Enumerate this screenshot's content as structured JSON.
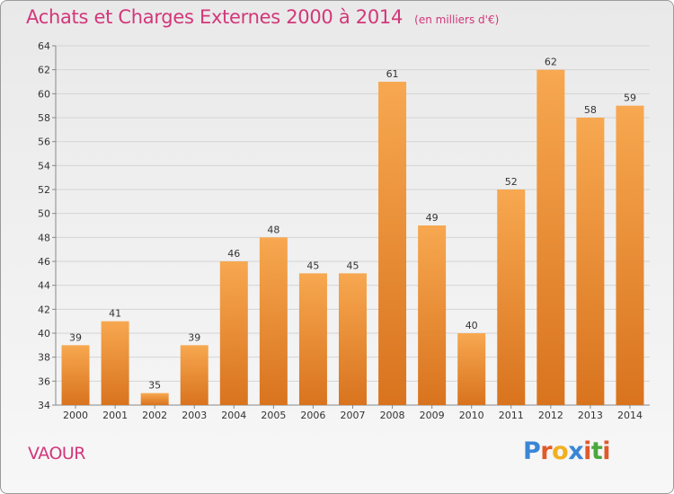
{
  "header": {
    "title": "Achats et Charges Externes 2000 à 2014",
    "subtitle": "(en milliers d'€)"
  },
  "footer": {
    "commune": "VAOUR",
    "logo_text": "Proxiti"
  },
  "colors": {
    "bar_light": "#f7a850",
    "bar_dark": "#d9731e",
    "title": "#d2377a",
    "logo_letters": [
      "#3a86d6",
      "#e05a2a",
      "#f0b020",
      "#3a86d6",
      "#e05a2a",
      "#4aa83c",
      "#e05a2a"
    ]
  },
  "chart_data": {
    "type": "bar",
    "title": "Achats et Charges Externes 2000 à 2014",
    "subtitle": "(en milliers d'€)",
    "categories": [
      "2000",
      "2001",
      "2002",
      "2003",
      "2004",
      "2005",
      "2006",
      "2007",
      "2008",
      "2009",
      "2010",
      "2011",
      "2012",
      "2013",
      "2014"
    ],
    "values": [
      39,
      41,
      35,
      39,
      46,
      48,
      45,
      45,
      61,
      49,
      40,
      52,
      62,
      58,
      59
    ],
    "ylim": [
      34,
      64
    ],
    "yticks": [
      34,
      36,
      38,
      40,
      42,
      44,
      46,
      48,
      50,
      52,
      54,
      56,
      58,
      60,
      62,
      64
    ],
    "grid": true,
    "data_labels": true
  }
}
